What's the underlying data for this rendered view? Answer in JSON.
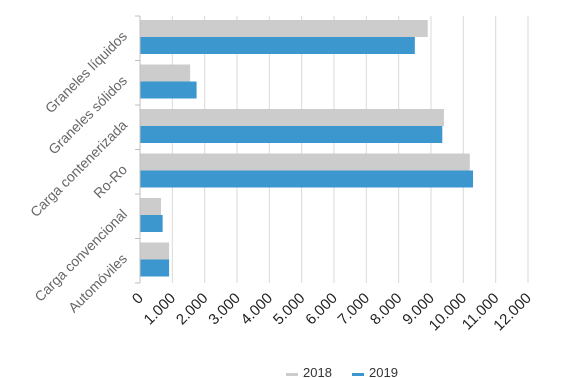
{
  "chart_data": {
    "type": "bar",
    "orientation": "horizontal",
    "categories": [
      "Graneles líquidos",
      "Graneles sólidos",
      "Carga contenerizada",
      "Ro-Ro",
      "Carga convencional",
      "Automóviles"
    ],
    "series": [
      {
        "name": "2018",
        "color": "#cccccc",
        "values": [
          8900,
          1550,
          9400,
          10200,
          650,
          900
        ]
      },
      {
        "name": "2019",
        "color": "#3d97cf",
        "values": [
          8500,
          1750,
          9350,
          10300,
          700,
          900
        ]
      }
    ],
    "xticks": [
      "0",
      "1.000",
      "2.000",
      "3.000",
      "4.000",
      "5.000",
      "6.000",
      "7.000",
      "8.000",
      "9.000",
      "10.000",
      "11.000",
      "12.000"
    ],
    "xlim": [
      0,
      12000
    ],
    "grid": "vertical",
    "legend_position": "bottom",
    "title": "",
    "xlabel": "",
    "ylabel": ""
  }
}
